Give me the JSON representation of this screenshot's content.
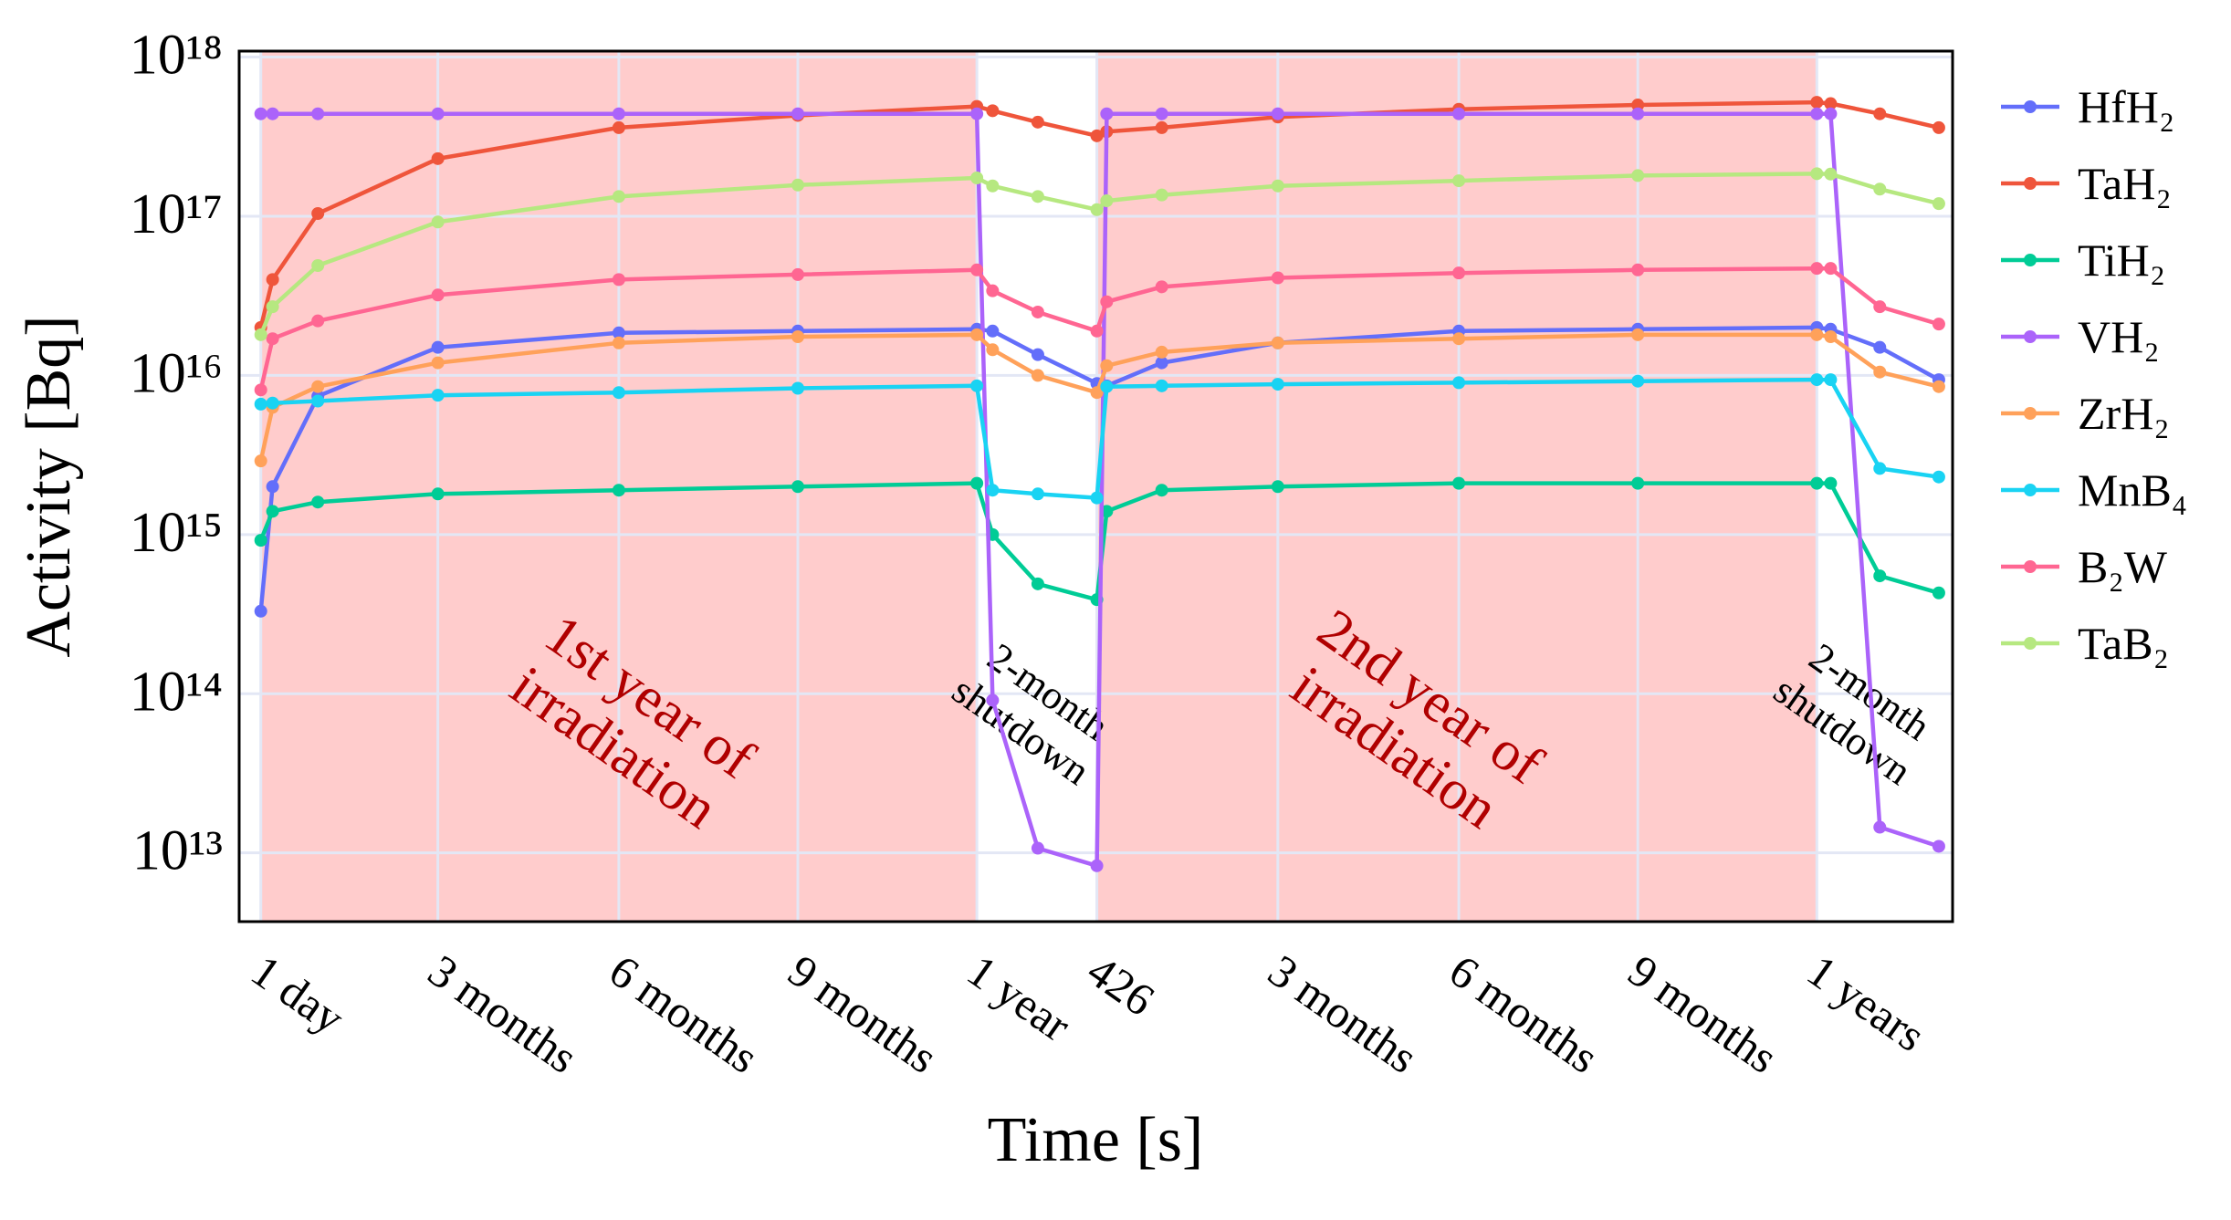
{
  "chart_data": {
    "type": "line",
    "xlabel": "Time [s]",
    "ylabel": "Activity [Bq]",
    "log_y": true,
    "grid": true,
    "legend": "right",
    "x": [
      1,
      7,
      30,
      91,
      183,
      274,
      365,
      373,
      396,
      426,
      431,
      459,
      518,
      610,
      701,
      792,
      799,
      824,
      854
    ],
    "xlim": [
      -10,
      861
    ],
    "xticks": [
      {
        "value": 1,
        "label": "1 day"
      },
      {
        "value": 91,
        "label": "3 months"
      },
      {
        "value": 183,
        "label": "6 months"
      },
      {
        "value": 274,
        "label": "9 months"
      },
      {
        "value": 365,
        "label": "1 year"
      },
      426,
      {
        "value": 518,
        "label": "3 months"
      },
      {
        "value": 610,
        "label": "6 months"
      },
      {
        "value": 701,
        "label": "9 months"
      },
      {
        "value": 792,
        "label": "1 years"
      }
    ],
    "ylim": [
      3700000000000.0,
      1.09e+18
    ],
    "yticks": [
      {
        "value": 10000000000000.0,
        "label": "10¹³"
      },
      {
        "value": 100000000000000.0,
        "label": "10¹⁴"
      },
      {
        "value": 1000000000000000.0,
        "label": "10¹⁵"
      },
      {
        "value": 1e+16,
        "label": "10¹⁶"
      },
      {
        "value": 1e+17,
        "label": "10¹⁷"
      },
      {
        "value": 1e+18,
        "label": "10¹⁸"
      }
    ],
    "shaded_regions": [
      [
        1,
        365
      ],
      [
        426,
        792
      ]
    ],
    "shade_color": "#ffcccc",
    "annotations": [
      {
        "lines": [
          "1st year of",
          "irradiation"
        ],
        "color": "#b00000"
      },
      {
        "lines": [
          "2-month",
          "shutdown"
        ],
        "color": "#000000"
      },
      {
        "lines": [
          "2nd year of",
          "irradiation"
        ],
        "color": "#b00000"
      },
      {
        "lines": [
          "2-month",
          "shutdown"
        ],
        "color": "#000000"
      }
    ],
    "series": [
      {
        "name": "HfH₂",
        "color": "#636efa",
        "values": [
          330000000000000.0,
          2000000000000000.0,
          7400000000000000.0,
          1.5e+16,
          1.85e+16,
          1.9e+16,
          1.95e+16,
          1.9e+16,
          1.35e+16,
          8900000000000000.0,
          8600000000000000.0,
          1.2e+16,
          1.6e+16,
          1.9e+16,
          1.95e+16,
          2e+16,
          1.95e+16,
          1.5e+16,
          9400000000000000.0
        ]
      },
      {
        "name": "TaH₂",
        "color": "#ef553b",
        "values": [
          2e+16,
          4e+16,
          1.04e+17,
          2.3e+17,
          3.6e+17,
          4.3e+17,
          4.9e+17,
          4.6e+17,
          3.9e+17,
          3.2e+17,
          3.4e+17,
          3.6e+17,
          4.2e+17,
          4.7e+17,
          5e+17,
          5.2e+17,
          5.1e+17,
          4.4e+17,
          3.6e+17
        ]
      },
      {
        "name": "TiH₂",
        "color": "#00cc96",
        "values": [
          920000000000000.0,
          1400000000000000.0,
          1600000000000000.0,
          1800000000000000.0,
          1900000000000000.0,
          2000000000000000.0,
          2100000000000000.0,
          1000000000000000.0,
          490000000000000.0,
          390000000000000.0,
          1400000000000000.0,
          1900000000000000.0,
          2000000000000000.0,
          2100000000000000.0,
          2100000000000000.0,
          2100000000000000.0,
          2100000000000000.0,
          550000000000000.0,
          430000000000000.0
        ]
      },
      {
        "name": "VH₂",
        "color": "#ab63fa",
        "values": [
          4.4e+17,
          4.4e+17,
          4.4e+17,
          4.4e+17,
          4.4e+17,
          4.4e+17,
          4.4e+17,
          91000000000000.0,
          10700000000000.0,
          8300000000000.0,
          4.4e+17,
          4.4e+17,
          4.4e+17,
          4.4e+17,
          4.4e+17,
          4.4e+17,
          4.4e+17,
          14500000000000.0,
          11000000000000.0
        ]
      },
      {
        "name": "ZrH₂",
        "color": "#ffa15a",
        "values": [
          2900000000000000.0,
          6300000000000000.0,
          8500000000000000.0,
          1.2e+16,
          1.6e+16,
          1.75e+16,
          1.8e+16,
          1.45e+16,
          1e+16,
          7800000000000000.0,
          1.15e+16,
          1.4e+16,
          1.6e+16,
          1.7e+16,
          1.8e+16,
          1.8e+16,
          1.75e+16,
          1.05e+16,
          8500000000000000.0
        ]
      },
      {
        "name": "MnB₄",
        "color": "#19d3f3",
        "values": [
          6600000000000000.0,
          6700000000000000.0,
          6900000000000000.0,
          7500000000000000.0,
          7800000000000000.0,
          8300000000000000.0,
          8600000000000000.0,
          1900000000000000.0,
          1800000000000000.0,
          1700000000000000.0,
          8500000000000000.0,
          8600000000000000.0,
          8800000000000000.0,
          9000000000000000.0,
          9200000000000000.0,
          9400000000000000.0,
          9400000000000000.0,
          2600000000000000.0,
          2300000000000000.0
        ]
      },
      {
        "name": "B₂W",
        "color": "#ff6692",
        "values": [
          8100000000000000.0,
          1.7e+16,
          2.2e+16,
          3.2e+16,
          4e+16,
          4.3e+16,
          4.6e+16,
          3.4e+16,
          2.5e+16,
          1.9e+16,
          2.9e+16,
          3.6e+16,
          4.1e+16,
          4.4e+16,
          4.6e+16,
          4.7e+16,
          4.7e+16,
          2.7e+16,
          2.1e+16
        ]
      },
      {
        "name": "TaB₂",
        "color": "#b6e880",
        "values": [
          1.8e+16,
          2.7e+16,
          4.9e+16,
          9.2e+16,
          1.33e+17,
          1.57e+17,
          1.74e+17,
          1.55e+17,
          1.33e+17,
          1.1e+17,
          1.25e+17,
          1.36e+17,
          1.55e+17,
          1.67e+17,
          1.8e+17,
          1.85e+17,
          1.84e+17,
          1.48e+17,
          1.2e+17
        ]
      }
    ]
  }
}
